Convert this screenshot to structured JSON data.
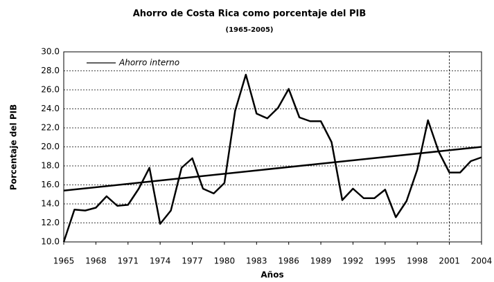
{
  "chart_data": {
    "type": "line",
    "title": "Ahorro de Costa Rica como porcentaje del PIB",
    "subtitle": "(1965-2005)",
    "x_label": "Años",
    "y_label": "Porcentaje del PIB",
    "x": [
      1965,
      1966,
      1967,
      1968,
      1969,
      1970,
      1971,
      1972,
      1973,
      1974,
      1975,
      1976,
      1977,
      1978,
      1979,
      1980,
      1981,
      1982,
      1983,
      1984,
      1985,
      1986,
      1987,
      1988,
      1989,
      1990,
      1991,
      1992,
      1993,
      1994,
      1995,
      1996,
      1997,
      1998,
      1999,
      2000,
      2001,
      2002,
      2003,
      2004
    ],
    "series": [
      {
        "name": "Ahorro interno",
        "color": "#000000",
        "values": [
          10.0,
          13.4,
          13.3,
          13.6,
          14.8,
          13.8,
          13.9,
          15.6,
          17.8,
          11.9,
          13.3,
          17.8,
          18.8,
          15.6,
          15.1,
          16.2,
          23.8,
          27.6,
          23.5,
          23.0,
          24.1,
          26.1,
          23.1,
          22.7,
          22.7,
          20.5,
          14.4,
          15.6,
          14.6,
          14.6,
          15.5,
          12.6,
          14.3,
          17.6,
          22.8,
          19.5,
          17.3,
          17.3,
          18.5,
          18.9
        ]
      }
    ],
    "trendline": {
      "x": [
        1965,
        2004
      ],
      "values": [
        15.4,
        20.0
      ],
      "color": "#000000"
    },
    "vline": 2001,
    "xlim": [
      1965,
      2004
    ],
    "xticks": [
      1965,
      1968,
      1971,
      1974,
      1977,
      1980,
      1983,
      1986,
      1989,
      1992,
      1995,
      1998,
      2001,
      2004
    ],
    "ylim": [
      10,
      30
    ],
    "yticks": [
      {
        "value": 10,
        "label": "10.0"
      },
      {
        "value": 12,
        "label": "12.0"
      },
      {
        "value": 14,
        "label": "14.0"
      },
      {
        "value": 16,
        "label": "16.0"
      },
      {
        "value": 18,
        "label": "18.0"
      },
      {
        "value": 20,
        "label": "20.0"
      },
      {
        "value": 22,
        "label": "22.0"
      },
      {
        "value": 24,
        "label": "24.0"
      },
      {
        "value": 26,
        "label": "26.0"
      },
      {
        "value": 28,
        "label": "28.0"
      },
      {
        "value": 30,
        "label": "30.0"
      }
    ],
    "grid": true,
    "legend": "upper left"
  }
}
